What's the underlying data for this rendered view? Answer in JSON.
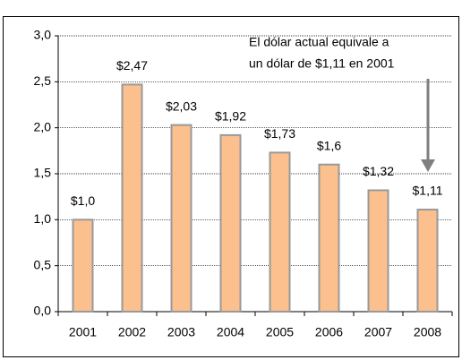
{
  "chart_data": {
    "type": "bar",
    "categories": [
      "2001",
      "2002",
      "2003",
      "2004",
      "2005",
      "2006",
      "2007",
      "2008"
    ],
    "values": [
      1.0,
      2.47,
      2.03,
      1.92,
      1.73,
      1.6,
      1.32,
      1.11
    ],
    "value_labels": [
      "$1,0",
      "$2,47",
      "$2,03",
      "$1,92",
      "$1,73",
      "$1,6",
      "$1,32",
      "$1,11"
    ],
    "color": "#fbc08d",
    "ylim": [
      0,
      3
    ],
    "yticks": [
      {
        "value": 0,
        "label": "0,0"
      },
      {
        "value": 0.5,
        "label": "0,5"
      },
      {
        "value": 1,
        "label": "1,0"
      },
      {
        "value": 1.5,
        "label": "1,5"
      },
      {
        "value": 2,
        "label": "2,0"
      },
      {
        "value": 2.5,
        "label": "2,5"
      },
      {
        "value": 3,
        "label": "3,0"
      }
    ],
    "grid": true,
    "annotation": [
      "El dólar actual equivale a",
      "un dólar de $1,11 en 2001"
    ]
  }
}
